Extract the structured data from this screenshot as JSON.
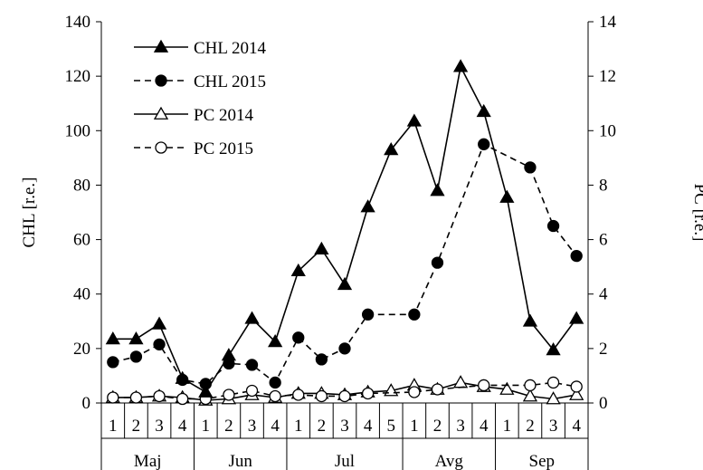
{
  "chart_data": {
    "type": "line",
    "title": "",
    "weeks": [
      "1",
      "2",
      "3",
      "4",
      "1",
      "2",
      "3",
      "4",
      "1",
      "2",
      "3",
      "4",
      "5",
      "1",
      "2",
      "3",
      "4",
      "1",
      "2",
      "3",
      "4"
    ],
    "months": [
      {
        "name": "Maj",
        "count": 4
      },
      {
        "name": "Jun",
        "count": 4
      },
      {
        "name": "Jul",
        "count": 5
      },
      {
        "name": "Avg",
        "count": 4
      },
      {
        "name": "Sep",
        "count": 4
      }
    ],
    "y_left": {
      "label": "CHL [r.e.]",
      "min": 0,
      "max": 140,
      "step": 20
    },
    "y_right": {
      "label": "PC [r.e.]",
      "min": 0,
      "max": 14,
      "step": 2
    },
    "legend_position": "top-left",
    "series": [
      {
        "name": "CHL 2014",
        "axis": "left",
        "dash": false,
        "marker": "triangle-filled",
        "values": [
          23.5,
          23.5,
          29,
          9,
          4,
          17.5,
          31,
          22.5,
          48.5,
          56.5,
          43.5,
          72,
          93,
          103.5,
          78,
          123.5,
          107,
          75.5,
          30,
          19.5,
          31
        ]
      },
      {
        "name": "CHL 2015",
        "axis": "left",
        "dash": true,
        "marker": "circle-filled",
        "values": [
          15,
          17,
          21.5,
          8.5,
          7,
          14.5,
          14,
          7.5,
          24,
          16,
          20,
          32.5,
          null,
          32.5,
          51.5,
          null,
          95,
          null,
          86.5,
          65,
          54
        ]
      },
      {
        "name": "PC 2014",
        "axis": "right",
        "dash": false,
        "marker": "triangle-open",
        "values": [
          0.2,
          0.2,
          0.25,
          0.2,
          0.1,
          0.15,
          0.3,
          0.2,
          0.35,
          0.35,
          0.3,
          0.4,
          0.45,
          0.65,
          0.5,
          0.75,
          0.6,
          0.5,
          0.25,
          0.15,
          0.3
        ]
      },
      {
        "name": "PC 2015",
        "axis": "right",
        "dash": true,
        "marker": "circle-open",
        "values": [
          0.2,
          0.2,
          0.25,
          0.15,
          0.15,
          0.3,
          0.45,
          0.25,
          0.3,
          0.25,
          0.25,
          0.35,
          null,
          0.4,
          0.5,
          null,
          0.65,
          null,
          0.65,
          0.75,
          0.6
        ]
      }
    ]
  }
}
